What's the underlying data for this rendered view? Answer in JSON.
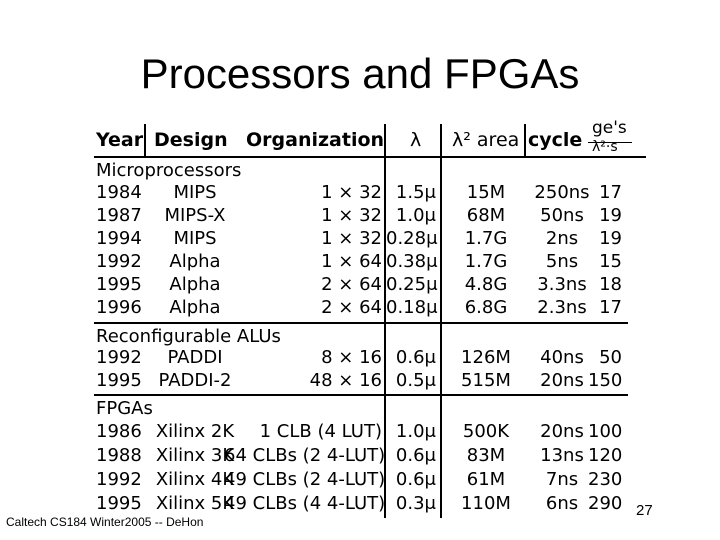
{
  "title": "Processors and FPGAs",
  "table": {
    "headers": {
      "year": "Year",
      "design": "Design",
      "organization": "Organization",
      "lambda": "λ",
      "area": "λ² area",
      "cycle": "cycle",
      "ge_top": "ge's",
      "ge_bottom": "λ²·s"
    },
    "sections": [
      {
        "label": "Microprocessors",
        "rows": [
          {
            "year": "1984",
            "design": "MIPS",
            "org": "1 × 32",
            "lambda": "1.5μ",
            "area": "15M",
            "cycle": "250ns",
            "ge": "17"
          },
          {
            "year": "1987",
            "design": "MIPS-X",
            "org": "1 × 32",
            "lambda": "1.0μ",
            "area": "68M",
            "cycle": "50ns",
            "ge": "19"
          },
          {
            "year": "1994",
            "design": "MIPS",
            "org": "1 × 32",
            "lambda": "0.28μ",
            "area": "1.7G",
            "cycle": "2ns",
            "ge": "19"
          },
          {
            "year": "1992",
            "design": "Alpha",
            "org": "1 × 64",
            "lambda": "0.38μ",
            "area": "1.7G",
            "cycle": "5ns",
            "ge": "15"
          },
          {
            "year": "1995",
            "design": "Alpha",
            "org": "2 × 64",
            "lambda": "0.25μ",
            "area": "4.8G",
            "cycle": "3.3ns",
            "ge": "18"
          },
          {
            "year": "1996",
            "design": "Alpha",
            "org": "2 × 64",
            "lambda": "0.18μ",
            "area": "6.8G",
            "cycle": "2.3ns",
            "ge": "17"
          }
        ]
      },
      {
        "label": "Reconfigurable ALUs",
        "rows": [
          {
            "year": "1992",
            "design": "PADDI",
            "org": "8 × 16",
            "lambda": "0.6μ",
            "area": "126M",
            "cycle": "40ns",
            "ge": "50"
          },
          {
            "year": "1995",
            "design": "PADDI-2",
            "org": "48 × 16",
            "lambda": "0.5μ",
            "area": "515M",
            "cycle": "20ns",
            "ge": "150"
          }
        ]
      },
      {
        "label": "FPGAs",
        "rows": [
          {
            "year": "1986",
            "design": "Xilinx 2K",
            "org": "1 CLB (4 LUT)",
            "lambda": "1.0μ",
            "area": "500K",
            "cycle": "20ns",
            "ge": "100"
          },
          {
            "year": "1988",
            "design": "Xilinx 3K",
            "org": "64 CLBs (2 4-LUT)",
            "lambda": "0.6μ",
            "area": "83M",
            "cycle": "13ns",
            "ge": "120"
          },
          {
            "year": "1992",
            "design": "Xilinx 4K",
            "org": "49 CLBs (2 4-LUT)",
            "lambda": "0.6μ",
            "area": "61M",
            "cycle": "7ns",
            "ge": "230"
          },
          {
            "year": "1995",
            "design": "Xilinx 5K",
            "org": "49 CLBs (4 4-LUT)",
            "lambda": "0.3μ",
            "area": "110M",
            "cycle": "6ns",
            "ge": "290"
          }
        ]
      }
    ]
  },
  "footer": "Caltech CS184 Winter2005 -- DeHon",
  "page_number": "27"
}
